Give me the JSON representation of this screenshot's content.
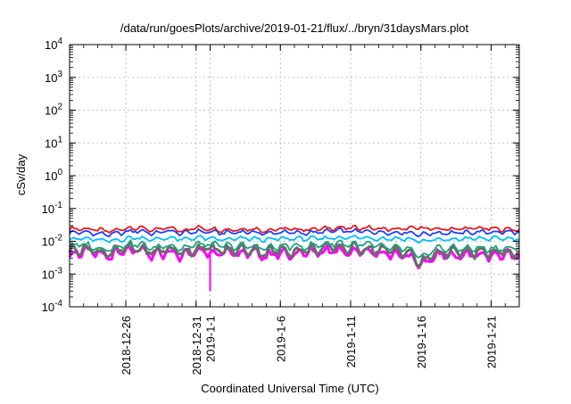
{
  "chart_data": {
    "type": "line",
    "title": "/data/run/goesPlots/archive/2019-01-21/flux/../bryn/31daysMars.plot",
    "xlabel": "Coordinated Universal Time (UTC)",
    "ylabel": "cSv/day",
    "y_scale": "log",
    "ylim": [
      0.0001,
      10000
    ],
    "y_ticks": [
      {
        "base": "10",
        "exp": "-4"
      },
      {
        "base": "10",
        "exp": "-3"
      },
      {
        "base": "10",
        "exp": "-2"
      },
      {
        "base": "10",
        "exp": "-1"
      },
      {
        "base": "10",
        "exp": "0"
      },
      {
        "base": "10",
        "exp": "1"
      },
      {
        "base": "10",
        "exp": "2"
      },
      {
        "base": "10",
        "exp": "3"
      },
      {
        "base": "10",
        "exp": "4"
      }
    ],
    "xlim": [
      "2018-12-22",
      "2019-01-23"
    ],
    "x_ticks": [
      {
        "label": "2018-12-26",
        "date": "2018-12-26"
      },
      {
        "label": "2018-12-31",
        "date": "2018-12-31"
      },
      {
        "label": "2019-1-1",
        "date": "2019-01-01"
      },
      {
        "label": "2019-1-6",
        "date": "2019-01-06"
      },
      {
        "label": "2019-1-11",
        "date": "2019-01-11"
      },
      {
        "label": "2019-1-16",
        "date": "2019-01-16"
      },
      {
        "label": "2019-1-21",
        "date": "2019-01-21"
      }
    ],
    "grid": true,
    "legend": "none",
    "start_date": "2018-12-22",
    "x": [
      0,
      1,
      2,
      3,
      4,
      5,
      6,
      7,
      8,
      9,
      10,
      11,
      12,
      13,
      14,
      15,
      16,
      17,
      18,
      19,
      20,
      21,
      22,
      23,
      24,
      25,
      26,
      27,
      28,
      29,
      30,
      31,
      32
    ],
    "series": [
      {
        "color": "#e41a1c",
        "values": [
          0.024,
          0.024,
          0.022,
          0.02,
          0.025,
          0.026,
          0.021,
          0.026,
          0.021,
          0.026,
          0.024,
          0.022,
          0.023,
          0.024,
          0.021,
          0.024,
          0.023,
          0.023,
          0.024,
          0.026,
          0.025,
          0.026,
          0.024,
          0.023,
          0.024,
          0.026,
          0.023,
          0.024,
          0.024,
          0.025,
          0.024,
          0.023,
          0.023
        ]
      },
      {
        "color": "#1f3fff",
        "values": [
          0.018,
          0.019,
          0.017,
          0.016,
          0.019,
          0.021,
          0.017,
          0.021,
          0.017,
          0.02,
          0.019,
          0.018,
          0.019,
          0.019,
          0.017,
          0.019,
          0.018,
          0.018,
          0.019,
          0.021,
          0.02,
          0.02,
          0.019,
          0.018,
          0.019,
          0.016,
          0.018,
          0.018,
          0.018,
          0.019,
          0.019,
          0.019,
          0.019
        ]
      },
      {
        "color": "#00bfff",
        "values": [
          0.012,
          0.012,
          0.011,
          0.01,
          0.012,
          0.013,
          0.011,
          0.013,
          0.011,
          0.013,
          0.012,
          0.011,
          0.012,
          0.012,
          0.011,
          0.012,
          0.012,
          0.012,
          0.012,
          0.013,
          0.013,
          0.013,
          0.012,
          0.012,
          0.012,
          0.01,
          0.011,
          0.011,
          0.012,
          0.012,
          0.012,
          0.012,
          0.012
        ]
      },
      {
        "color": "#1aa37a",
        "values": [
          0.007,
          0.008,
          0.006,
          0.006,
          0.008,
          0.008,
          0.006,
          0.008,
          0.006,
          0.008,
          0.008,
          0.007,
          0.007,
          0.007,
          0.006,
          0.007,
          0.007,
          0.007,
          0.008,
          0.009,
          0.008,
          0.008,
          0.007,
          0.006,
          0.006,
          0.003,
          0.006,
          0.006,
          0.006,
          0.006,
          0.006,
          0.006,
          0.006
        ]
      },
      {
        "color": "#6b6b6b",
        "values": [
          0.005,
          0.006,
          0.005,
          0.0045,
          0.006,
          0.006,
          0.0045,
          0.006,
          0.0045,
          0.006,
          0.006,
          0.005,
          0.0055,
          0.0055,
          0.0045,
          0.0055,
          0.005,
          0.0055,
          0.006,
          0.0065,
          0.006,
          0.006,
          0.0055,
          0.005,
          0.005,
          0.002,
          0.0045,
          0.0045,
          0.0045,
          0.0045,
          0.0045,
          0.0045,
          0.0045
        ]
      },
      {
        "color": "#ff00ff",
        "values": [
          0.004,
          0.005,
          0.004,
          0.0035,
          0.005,
          0.005,
          0.0035,
          0.005,
          0.0035,
          0.005,
          0.005,
          0.004,
          0.0045,
          0.0045,
          0.0035,
          0.0045,
          0.004,
          0.0045,
          0.005,
          0.0055,
          0.005,
          0.005,
          0.0045,
          0.004,
          0.004,
          0.0016,
          0.0038,
          0.0038,
          0.0038,
          0.0038,
          0.0038,
          0.0038,
          0.0038
        ]
      }
    ],
    "annotations": [
      {
        "series_color": "#ff00ff",
        "date": "2019-01-01",
        "value": 0.0003,
        "note": "downward spike"
      }
    ]
  }
}
